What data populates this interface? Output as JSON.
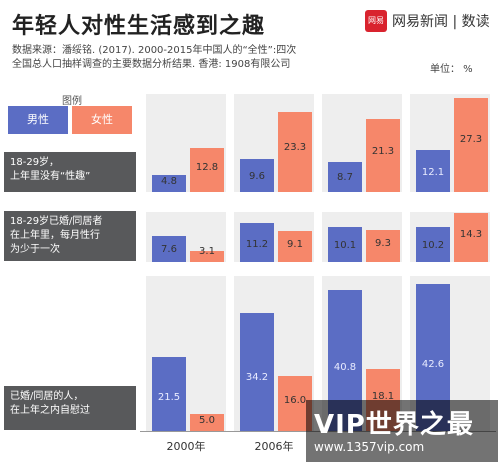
{
  "header": {
    "title": "年轻人对性生活感到之趣",
    "brand_logo": "网易",
    "brand_text": "网易新闻 | 数读"
  },
  "source": {
    "line1": "数据来源：潘绥铭. (2017). 2000-2015年中国人的“全性”:四次",
    "line2": "全国总人口抽样调查的主要数据分析结果. 香港: 1908有限公司"
  },
  "unit": "单位： %",
  "legend": {
    "title": "图例",
    "male": "男性",
    "female": "女性"
  },
  "colors": {
    "male": "#5b6dc4",
    "female": "#f6876a",
    "label_bg": "#58595b"
  },
  "chart_data": {
    "type": "bar",
    "categories": [
      "2000年",
      "2006年",
      "",
      ""
    ],
    "groups": [
      {
        "label_line1": "18-29岁，",
        "label_line2": "上年里没有“性趣”",
        "label_line3": "",
        "male": [
          4.8,
          9.6,
          8.7,
          12.1
        ],
        "female": [
          12.8,
          23.3,
          21.3,
          27.3
        ],
        "male_text": [
          "4.8",
          "9.6",
          "8.7",
          "12.1"
        ],
        "female_text": [
          "12.8",
          "23.3",
          "21.3",
          "27.3"
        ]
      },
      {
        "label_line1": "18-29岁已婚/同居者",
        "label_line2": "在上年里，每月性行",
        "label_line3": "为少于一次",
        "male": [
          7.6,
          11.2,
          10.1,
          10.2
        ],
        "female": [
          3.1,
          9.1,
          9.3,
          14.3
        ],
        "male_text": [
          "7.6",
          "11.2",
          "10.1",
          "10.2"
        ],
        "female_text": [
          "3.1",
          "9.1",
          "9.3",
          "14.3"
        ]
      },
      {
        "label_line1": "已婚/同居的人，",
        "label_line2": "在上年之内自慰过",
        "label_line3": "",
        "male": [
          21.5,
          34.2,
          40.8,
          42.6
        ],
        "female": [
          5.0,
          16.0,
          18.1,
          0
        ],
        "male_text": [
          "21.5",
          "34.2",
          "40.8",
          "42.6"
        ],
        "female_text": [
          "5.0",
          "16.0",
          "18.1",
          ""
        ]
      }
    ]
  },
  "watermark": {
    "main": "VIP世界之最",
    "sub": "www.1357vip.com"
  }
}
